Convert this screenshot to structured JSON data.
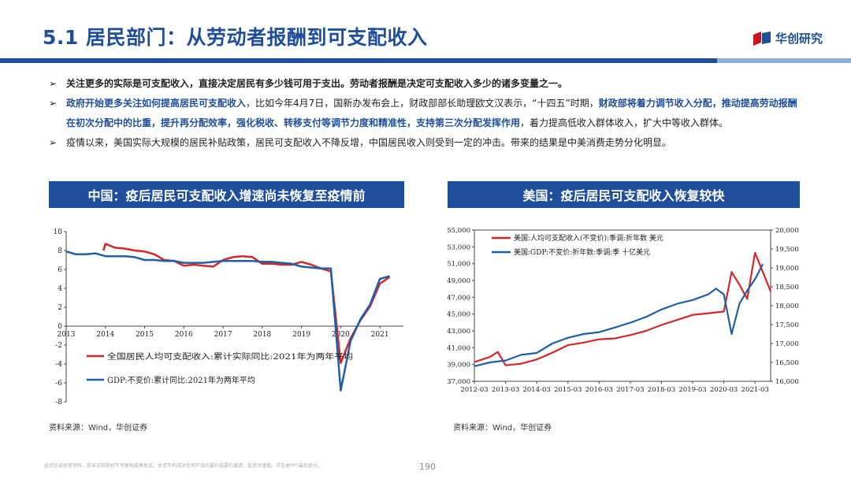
{
  "header": {
    "title": "5.1 居民部门：从劳动者报酬到可支配收入",
    "logo_text": "华创研究"
  },
  "bullets": {
    "b1_bold": "关注更多的实际是可支配收入，直接决定居民有多少钱可用于支出。劳动者报酬是决定可支配收入多少的诸多变量之一。",
    "b2_blue1": "政府开始更多关注如何提高居民可支配收入",
    "b2_text1": "，比如今年4月7日，国新办发布会上，财政部部长助理欧文汉表示，“十四五”时期，",
    "b2_blue2": "财政部将着力调节收入分配，推动提高劳动报酬在初次分配中的比重，提升再分配效率，强化税收、转移支付等调节力度和精准性，支持第三次分配发挥作用",
    "b2_text2": "，着力提高低收入群体收入，扩大中等收入群体。",
    "b3_text": "疫情以来，美国实际大规模的居民补贴政策，居民可支配收入不降反增，中国居民收入则受到一定的冲击。带来的结果是中美消费走势分化明显。"
  },
  "left_panel": {
    "banner": "中国：疫后居民可支配收入增速尚未恢复至疫情前",
    "source": "资料来源：Wind，华创证券"
  },
  "right_panel": {
    "banner": "美国：疫后居民可支配收入恢复较快",
    "source": "资料来源：Wind，华创证券"
  },
  "footer": {
    "disclaimer": "此页包含机密资料，若非另获授权不可复制或再发送。本页不构成对任何产品的要约或要约邀请，投资须谨慎。详见本PPT最后部分。",
    "page_number": "190"
  },
  "chart_data": [
    {
      "type": "line",
      "title": "中国：疫后居民可支配收入增速尚未恢复至疫情前",
      "x_ticks": [
        "2013",
        "2014",
        "2015",
        "2016",
        "2017",
        "2018",
        "2019",
        "2020",
        "2021"
      ],
      "y_ticks": [
        "10",
        "8",
        "6",
        "4",
        "2",
        "0",
        "-2",
        "-4",
        "-6",
        "-8"
      ],
      "ylim": [
        -8,
        10
      ],
      "xlim": [
        2013.0,
        2021.6
      ],
      "series": [
        {
          "name": "全国居民人均可支配收入:累计实际同比:2021年为两年平均",
          "color": "#d62728",
          "x": [
            2013.95,
            2014.0,
            2014.25,
            2014.5,
            2014.75,
            2015.0,
            2015.25,
            2015.5,
            2015.75,
            2016.0,
            2016.25,
            2016.5,
            2016.75,
            2017.0,
            2017.25,
            2017.5,
            2017.75,
            2018.0,
            2018.25,
            2018.5,
            2018.75,
            2019.0,
            2019.25,
            2019.5,
            2019.75,
            2020.0,
            2020.25,
            2020.5,
            2020.75,
            2021.0,
            2021.25
          ],
          "y": [
            8.0,
            8.7,
            8.3,
            8.2,
            8.0,
            7.9,
            7.6,
            7.0,
            6.9,
            6.4,
            6.5,
            6.4,
            6.3,
            7.0,
            7.3,
            7.4,
            7.3,
            6.6,
            6.6,
            6.5,
            6.5,
            6.8,
            6.5,
            6.1,
            5.8,
            -3.9,
            -1.3,
            0.6,
            2.1,
            4.5,
            5.2
          ]
        },
        {
          "name": "GDP:不变价:累计同比:2021年为两年平均",
          "color": "#1f5fa8",
          "x": [
            2013.0,
            2013.25,
            2013.5,
            2013.75,
            2014.0,
            2014.25,
            2014.5,
            2014.75,
            2015.0,
            2015.25,
            2015.5,
            2015.75,
            2016.0,
            2016.25,
            2016.5,
            2016.75,
            2017.0,
            2017.25,
            2017.5,
            2017.75,
            2018.0,
            2018.25,
            2018.5,
            2018.75,
            2019.0,
            2019.25,
            2019.5,
            2019.75,
            2020.0,
            2020.25,
            2020.5,
            2020.75,
            2021.0,
            2021.25
          ],
          "y": [
            7.9,
            7.6,
            7.6,
            7.7,
            7.4,
            7.4,
            7.4,
            7.3,
            7.0,
            7.0,
            6.9,
            6.9,
            6.7,
            6.7,
            6.7,
            6.8,
            6.9,
            6.9,
            6.9,
            6.9,
            6.8,
            6.8,
            6.7,
            6.6,
            6.3,
            6.2,
            6.1,
            6.1,
            -6.8,
            -1.6,
            0.7,
            2.3,
            5.0,
            5.3
          ]
        }
      ]
    },
    {
      "type": "line",
      "title": "美国：疫后居民可支配收入恢复较快",
      "x_ticks": [
        "2012-03",
        "2013-03",
        "2014-03",
        "2015-03",
        "2016-03",
        "2017-03",
        "2018-03",
        "2019-03",
        "2020-03",
        "2021-03"
      ],
      "y_left_ticks": [
        "55,000",
        "53,000",
        "51,000",
        "49,000",
        "47,000",
        "45,000",
        "43,000",
        "41,000",
        "39,000",
        "37,000"
      ],
      "y_right_ticks": [
        "20,000",
        "19,500",
        "19,000",
        "18,500",
        "18,000",
        "17,500",
        "17,000",
        "16,500",
        "16,000"
      ],
      "ylim_left": [
        37000,
        55000
      ],
      "ylim_right": [
        16000,
        20000
      ],
      "xlim": [
        2012.0,
        2021.5
      ],
      "series": [
        {
          "name": "美国:人均可支配收入(不变价):季调:折年数 美元",
          "color": "#d62728",
          "axis": "left",
          "x": [
            2012.0,
            2012.5,
            2012.75,
            2013.0,
            2013.25,
            2013.5,
            2014.0,
            2014.5,
            2015.0,
            2015.5,
            2016.0,
            2016.5,
            2017.0,
            2017.5,
            2018.0,
            2018.5,
            2019.0,
            2019.5,
            2020.0,
            2020.25,
            2020.5,
            2020.75,
            2021.0,
            2021.25,
            2021.5
          ],
          "y": [
            39300,
            39900,
            40500,
            38900,
            39000,
            39100,
            39600,
            40400,
            41300,
            41600,
            42000,
            42100,
            42500,
            43000,
            43700,
            44300,
            44900,
            45100,
            45300,
            50000,
            48500,
            46800,
            52300,
            50000,
            47700
          ]
        },
        {
          "name": "美国:GDP:不变价:折年数:季调:季 十亿美元",
          "color": "#1f5fa8",
          "axis": "right",
          "x": [
            2012.0,
            2012.5,
            2013.0,
            2013.5,
            2014.0,
            2014.5,
            2015.0,
            2015.5,
            2016.0,
            2016.5,
            2017.0,
            2017.5,
            2018.0,
            2018.5,
            2019.0,
            2019.5,
            2019.75,
            2020.0,
            2020.25,
            2020.5,
            2020.75,
            2021.0,
            2021.25
          ],
          "y": [
            16400,
            16500,
            16550,
            16700,
            16750,
            17000,
            17150,
            17250,
            17300,
            17420,
            17550,
            17700,
            17900,
            18050,
            18150,
            18300,
            18450,
            18300,
            17250,
            18050,
            18400,
            18700,
            19100
          ]
        }
      ]
    }
  ]
}
